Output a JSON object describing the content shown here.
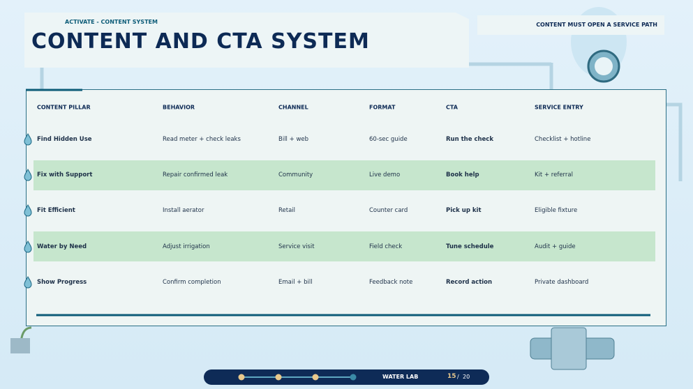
{
  "header": {
    "kicker": "ACTIVATE - CONTENT SYSTEM",
    "title": "CONTENT AND CTA SYSTEM",
    "badge": "CONTENT MUST OPEN A SERVICE PATH"
  },
  "table": {
    "headers": [
      "CONTENT PILLAR",
      "BEHAVIOR",
      "CHANNEL",
      "FORMAT",
      "CTA",
      "SERVICE ENTRY"
    ],
    "rows": [
      [
        "Find Hidden Use",
        "Read meter + check leaks",
        "Bill + web",
        "60-sec guide",
        "Run the check",
        "Checklist + hotline"
      ],
      [
        "Fix with Support",
        "Repair confirmed leak",
        "Community",
        "Live demo",
        "Book help",
        "Kit + referral"
      ],
      [
        "Fit Efficient",
        "Install aerator",
        "Retail",
        "Counter card",
        "Pick up kit",
        "Eligible fixture"
      ],
      [
        "Water by Need",
        "Adjust irrigation",
        "Service visit",
        "Field check",
        "Tune schedule",
        "Audit + guide"
      ],
      [
        "Show Progress",
        "Confirm completion",
        "Email + bill",
        "Feedback note",
        "Record action",
        "Private dashboard"
      ]
    ]
  },
  "footer": {
    "label": "WATER LAB",
    "page": "15",
    "separator": "/",
    "total": "20"
  }
}
